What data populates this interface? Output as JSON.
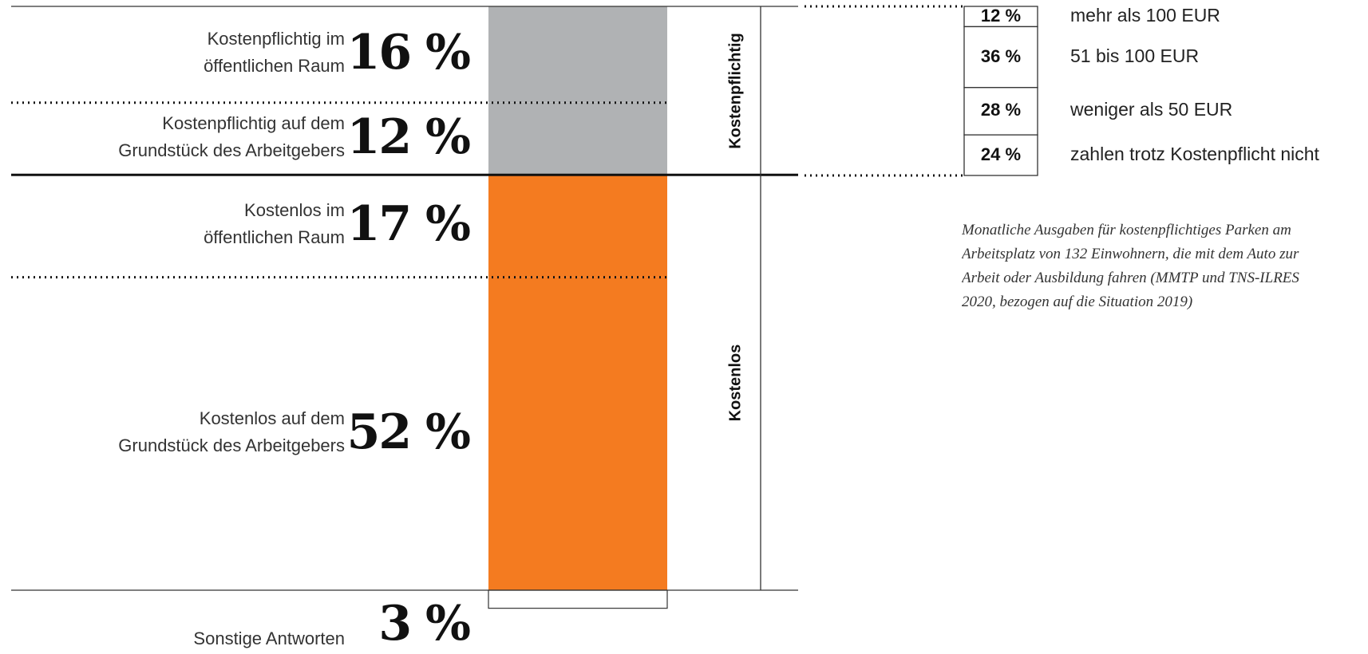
{
  "chart_data": {
    "type": "bar",
    "stacked": true,
    "unit": "%",
    "segments": [
      {
        "label": "Kostenpflichtig im\nöffentlichen Raum",
        "value_label": "16 %",
        "value": 16,
        "group": "Kostenpflichtig",
        "color": "#b0b2b4"
      },
      {
        "label": "Kostenpflichtig auf dem\nGrundstück des Arbeitgebers",
        "value_label": "12 %",
        "value": 12,
        "group": "Kostenpflichtig",
        "color": "#b0b2b4"
      },
      {
        "label": "Kostenlos im\nöffentlichen Raum",
        "value_label": "17 %",
        "value": 17,
        "group": "Kostenlos",
        "color": "#f47b20"
      },
      {
        "label": "Kostenlos auf dem\nGrundstück des Arbeitgebers",
        "value_label": "52 %",
        "value": 52,
        "group": "Kostenlos",
        "color": "#f47b20"
      },
      {
        "label": "Sonstige Antworten",
        "value_label": "3 %",
        "value": 3,
        "group": "",
        "color": "#ffffff"
      }
    ],
    "groups": [
      "Kostenpflichtig",
      "Kostenlos"
    ],
    "breakdown": [
      {
        "value": 12,
        "value_label": "12 %",
        "label": "mehr als 100 EUR"
      },
      {
        "value": 36,
        "value_label": "36 %",
        "label": "51 bis 100 EUR"
      },
      {
        "value": 28,
        "value_label": "28 %",
        "label": "weniger als 50 EUR"
      },
      {
        "value": 24,
        "value_label": "24 %",
        "label": "zahlen trotz Kostenpflicht nicht"
      }
    ],
    "note": "Monatliche Ausgaben für kostenpflichtiges Parken am\nArbeitsplatz von 132 Einwohnern, die mit dem Auto zur\nArbeit oder Ausbildung fahren (MMTP und TNS-ILRES\n2020, bezogen auf die Situation 2019)"
  }
}
